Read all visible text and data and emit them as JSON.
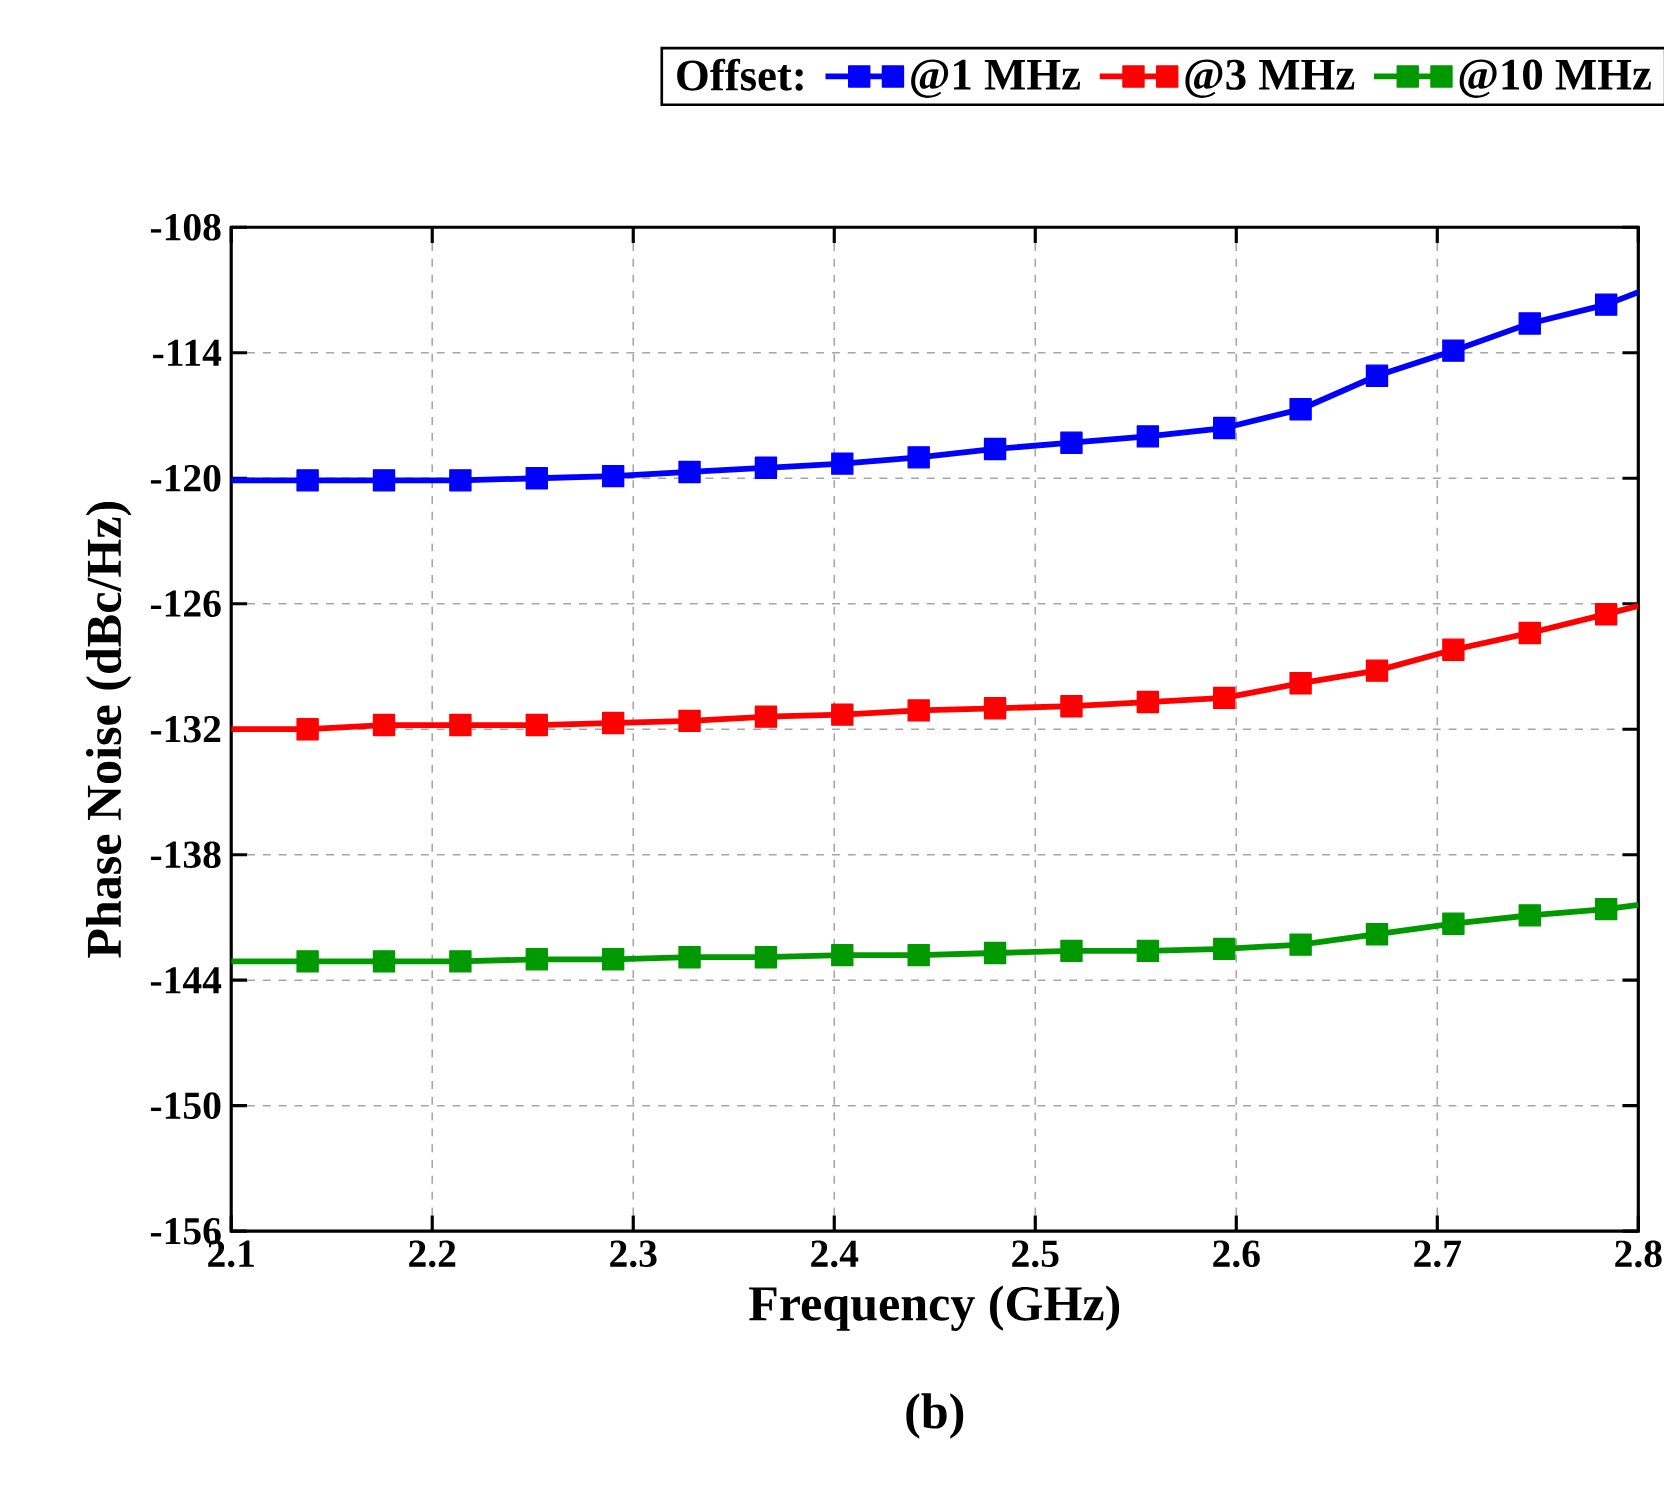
{
  "chart_data": {
    "type": "line",
    "xlabel": "Frequency (GHz)",
    "ylabel": "Phase Noise  (dBc/Hz)",
    "legend_title": "Offset:",
    "xlim": [
      2.1,
      2.8
    ],
    "xticks": [
      2.1,
      2.2,
      2.3,
      2.4,
      2.5,
      2.6,
      2.7,
      2.8
    ],
    "ylim": [
      -156,
      -108
    ],
    "yticks": [
      -156,
      -150,
      -144,
      -138,
      -132,
      -126,
      -120,
      -114,
      -108
    ],
    "x": [
      2.1,
      2.138,
      2.176,
      2.214,
      2.252,
      2.29,
      2.328,
      2.366,
      2.404,
      2.442,
      2.48,
      2.518,
      2.556,
      2.594,
      2.632,
      2.67,
      2.708,
      2.746,
      2.784,
      2.8
    ],
    "series": [
      {
        "name": "@1 MHz",
        "color": "#0000ff",
        "values": [
          -120.1,
          -120.1,
          -120.1,
          -120.1,
          -120.0,
          -119.9,
          -119.7,
          -119.5,
          -119.3,
          -119.0,
          -118.6,
          -118.3,
          -118.0,
          -117.6,
          -116.7,
          -115.1,
          -113.9,
          -112.6,
          -111.7,
          -111.1
        ]
      },
      {
        "name": "@3 MHz",
        "color": "#ff0000",
        "values": [
          -132.0,
          -132.0,
          -131.8,
          -131.8,
          -131.8,
          -131.7,
          -131.6,
          -131.4,
          -131.3,
          -131.1,
          -131.0,
          -130.9,
          -130.7,
          -130.5,
          -129.8,
          -129.2,
          -128.2,
          -127.4,
          -126.5,
          -126.1
        ]
      },
      {
        "name": "@10 MHz",
        "color": "#009900",
        "values": [
          -143.1,
          -143.1,
          -143.1,
          -143.1,
          -143.0,
          -143.0,
          -142.9,
          -142.9,
          -142.8,
          -142.8,
          -142.7,
          -142.6,
          -142.6,
          -142.5,
          -142.3,
          -141.8,
          -141.3,
          -140.9,
          -140.6,
          -140.4
        ]
      }
    ],
    "grid": true,
    "legend": "top",
    "marker": "square",
    "line_style": "solid",
    "annotations": [
      "(b)"
    ]
  }
}
